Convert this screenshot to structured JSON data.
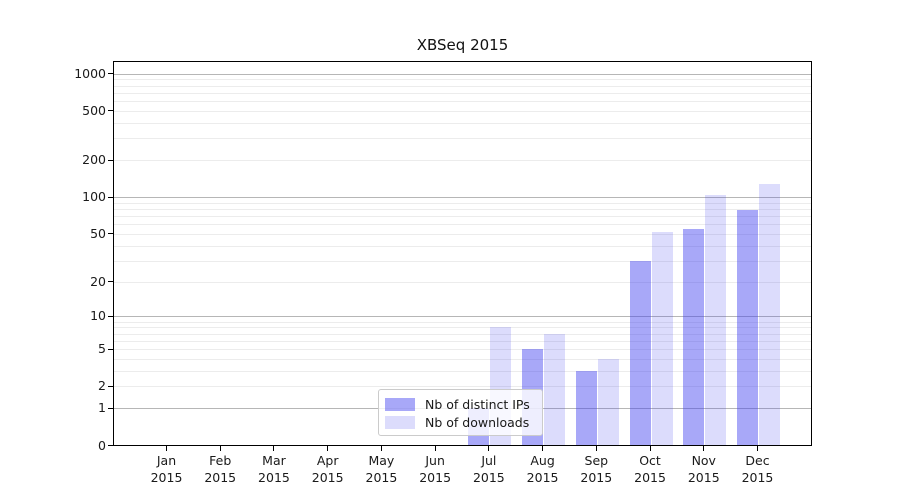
{
  "title": "XBSeq 2015",
  "legend": {
    "items": [
      {
        "label": "Nb of distinct IPs",
        "color": "rgba(61,61,240,0.45)"
      },
      {
        "label": "Nb of downloads",
        "color": "rgba(61,61,240,0.18)"
      }
    ]
  },
  "chart_data": {
    "type": "bar",
    "title": "XBSeq 2015",
    "categories": [
      "Jan",
      "Feb",
      "Mar",
      "Apr",
      "May",
      "Jun",
      "Jul",
      "Aug",
      "Sep",
      "Oct",
      "Nov",
      "Dec"
    ],
    "category_year": "2015",
    "series": [
      {
        "name": "Nb of distinct IPs",
        "color": "rgba(61,61,240,0.45)",
        "values": [
          0,
          0,
          0,
          0,
          0,
          0,
          1,
          5,
          3,
          30,
          55,
          79
        ]
      },
      {
        "name": "Nb of downloads",
        "color": "rgba(61,61,240,0.18)",
        "values": [
          0,
          0,
          0,
          0,
          0,
          0,
          8,
          7,
          4,
          52,
          104,
          128
        ]
      }
    ],
    "y_axis": {
      "ticks": [
        0,
        1,
        2,
        5,
        10,
        20,
        50,
        100,
        200,
        500,
        1000
      ],
      "scale": "log10(value+1)",
      "range": [
        0,
        1150
      ]
    },
    "grid": {
      "minor_color": "#ececec",
      "major_color": "#b6b6b6",
      "major_at": [
        1,
        10,
        100,
        1000
      ],
      "minor_at": "n x 10^k for n=2..9"
    },
    "legend_position": "inside lower-center-left",
    "xlabel": "",
    "ylabel": ""
  }
}
